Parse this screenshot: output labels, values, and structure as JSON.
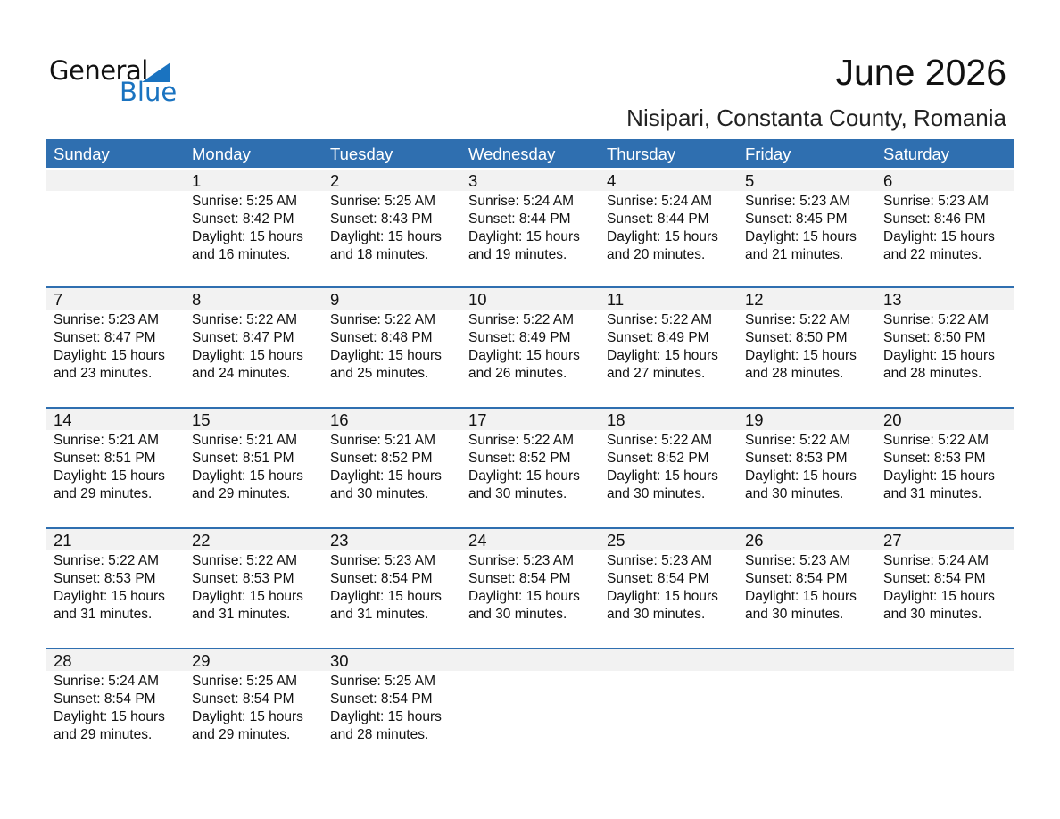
{
  "logo": {
    "line1": "General",
    "line2": "Blue"
  },
  "title": "June 2026",
  "subtitle": "Nisipari, Constanta County, Romania",
  "colors": {
    "header": "#2f6fb0",
    "logo_blue": "#1a73c0",
    "band": "#f2f2f2"
  },
  "weekdays": [
    "Sunday",
    "Monday",
    "Tuesday",
    "Wednesday",
    "Thursday",
    "Friday",
    "Saturday"
  ],
  "weeks": [
    [
      null,
      {
        "day": "1",
        "lines": [
          "Sunrise: 5:25 AM",
          "Sunset: 8:42 PM",
          "Daylight: 15 hours",
          "and 16 minutes."
        ]
      },
      {
        "day": "2",
        "lines": [
          "Sunrise: 5:25 AM",
          "Sunset: 8:43 PM",
          "Daylight: 15 hours",
          "and 18 minutes."
        ]
      },
      {
        "day": "3",
        "lines": [
          "Sunrise: 5:24 AM",
          "Sunset: 8:44 PM",
          "Daylight: 15 hours",
          "and 19 minutes."
        ]
      },
      {
        "day": "4",
        "lines": [
          "Sunrise: 5:24 AM",
          "Sunset: 8:44 PM",
          "Daylight: 15 hours",
          "and 20 minutes."
        ]
      },
      {
        "day": "5",
        "lines": [
          "Sunrise: 5:23 AM",
          "Sunset: 8:45 PM",
          "Daylight: 15 hours",
          "and 21 minutes."
        ]
      },
      {
        "day": "6",
        "lines": [
          "Sunrise: 5:23 AM",
          "Sunset: 8:46 PM",
          "Daylight: 15 hours",
          "and 22 minutes."
        ]
      }
    ],
    [
      {
        "day": "7",
        "lines": [
          "Sunrise: 5:23 AM",
          "Sunset: 8:47 PM",
          "Daylight: 15 hours",
          "and 23 minutes."
        ]
      },
      {
        "day": "8",
        "lines": [
          "Sunrise: 5:22 AM",
          "Sunset: 8:47 PM",
          "Daylight: 15 hours",
          "and 24 minutes."
        ]
      },
      {
        "day": "9",
        "lines": [
          "Sunrise: 5:22 AM",
          "Sunset: 8:48 PM",
          "Daylight: 15 hours",
          "and 25 minutes."
        ]
      },
      {
        "day": "10",
        "lines": [
          "Sunrise: 5:22 AM",
          "Sunset: 8:49 PM",
          "Daylight: 15 hours",
          "and 26 minutes."
        ]
      },
      {
        "day": "11",
        "lines": [
          "Sunrise: 5:22 AM",
          "Sunset: 8:49 PM",
          "Daylight: 15 hours",
          "and 27 minutes."
        ]
      },
      {
        "day": "12",
        "lines": [
          "Sunrise: 5:22 AM",
          "Sunset: 8:50 PM",
          "Daylight: 15 hours",
          "and 28 minutes."
        ]
      },
      {
        "day": "13",
        "lines": [
          "Sunrise: 5:22 AM",
          "Sunset: 8:50 PM",
          "Daylight: 15 hours",
          "and 28 minutes."
        ]
      }
    ],
    [
      {
        "day": "14",
        "lines": [
          "Sunrise: 5:21 AM",
          "Sunset: 8:51 PM",
          "Daylight: 15 hours",
          "and 29 minutes."
        ]
      },
      {
        "day": "15",
        "lines": [
          "Sunrise: 5:21 AM",
          "Sunset: 8:51 PM",
          "Daylight: 15 hours",
          "and 29 minutes."
        ]
      },
      {
        "day": "16",
        "lines": [
          "Sunrise: 5:21 AM",
          "Sunset: 8:52 PM",
          "Daylight: 15 hours",
          "and 30 minutes."
        ]
      },
      {
        "day": "17",
        "lines": [
          "Sunrise: 5:22 AM",
          "Sunset: 8:52 PM",
          "Daylight: 15 hours",
          "and 30 minutes."
        ]
      },
      {
        "day": "18",
        "lines": [
          "Sunrise: 5:22 AM",
          "Sunset: 8:52 PM",
          "Daylight: 15 hours",
          "and 30 minutes."
        ]
      },
      {
        "day": "19",
        "lines": [
          "Sunrise: 5:22 AM",
          "Sunset: 8:53 PM",
          "Daylight: 15 hours",
          "and 30 minutes."
        ]
      },
      {
        "day": "20",
        "lines": [
          "Sunrise: 5:22 AM",
          "Sunset: 8:53 PM",
          "Daylight: 15 hours",
          "and 31 minutes."
        ]
      }
    ],
    [
      {
        "day": "21",
        "lines": [
          "Sunrise: 5:22 AM",
          "Sunset: 8:53 PM",
          "Daylight: 15 hours",
          "and 31 minutes."
        ]
      },
      {
        "day": "22",
        "lines": [
          "Sunrise: 5:22 AM",
          "Sunset: 8:53 PM",
          "Daylight: 15 hours",
          "and 31 minutes."
        ]
      },
      {
        "day": "23",
        "lines": [
          "Sunrise: 5:23 AM",
          "Sunset: 8:54 PM",
          "Daylight: 15 hours",
          "and 31 minutes."
        ]
      },
      {
        "day": "24",
        "lines": [
          "Sunrise: 5:23 AM",
          "Sunset: 8:54 PM",
          "Daylight: 15 hours",
          "and 30 minutes."
        ]
      },
      {
        "day": "25",
        "lines": [
          "Sunrise: 5:23 AM",
          "Sunset: 8:54 PM",
          "Daylight: 15 hours",
          "and 30 minutes."
        ]
      },
      {
        "day": "26",
        "lines": [
          "Sunrise: 5:23 AM",
          "Sunset: 8:54 PM",
          "Daylight: 15 hours",
          "and 30 minutes."
        ]
      },
      {
        "day": "27",
        "lines": [
          "Sunrise: 5:24 AM",
          "Sunset: 8:54 PM",
          "Daylight: 15 hours",
          "and 30 minutes."
        ]
      }
    ],
    [
      {
        "day": "28",
        "lines": [
          "Sunrise: 5:24 AM",
          "Sunset: 8:54 PM",
          "Daylight: 15 hours",
          "and 29 minutes."
        ]
      },
      {
        "day": "29",
        "lines": [
          "Sunrise: 5:25 AM",
          "Sunset: 8:54 PM",
          "Daylight: 15 hours",
          "and 29 minutes."
        ]
      },
      {
        "day": "30",
        "lines": [
          "Sunrise: 5:25 AM",
          "Sunset: 8:54 PM",
          "Daylight: 15 hours",
          "and 28 minutes."
        ]
      },
      null,
      null,
      null,
      null
    ]
  ]
}
